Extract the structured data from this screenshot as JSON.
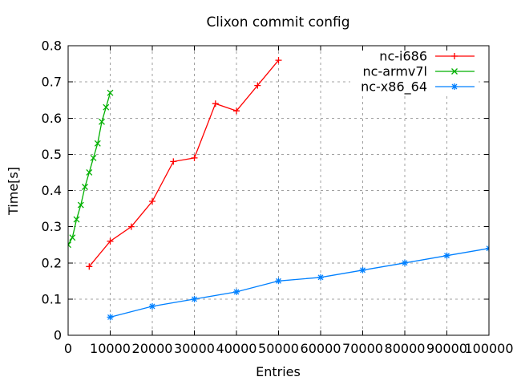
{
  "chart_data": {
    "type": "line",
    "title": "Clixon commit config",
    "xlabel": "Entries",
    "ylabel": "Time[s]",
    "xlim": [
      0,
      100000
    ],
    "ylim": [
      0,
      0.8
    ],
    "xticks": [
      0,
      10000,
      20000,
      30000,
      40000,
      50000,
      60000,
      70000,
      80000,
      90000,
      100000
    ],
    "yticks": [
      0,
      0.1,
      0.2,
      0.3,
      0.4,
      0.5,
      0.6,
      0.7,
      0.8
    ],
    "grid": true,
    "legend_position": "top-right-inside",
    "colors": {
      "background": "#ffffff",
      "grid": "#a0a0a0",
      "axis": "#000000",
      "text": "#000000"
    },
    "series": [
      {
        "name": "nc-i686",
        "color": "#ff0000",
        "marker": "plus",
        "x": [
          5000,
          10000,
          15000,
          20000,
          25000,
          30000,
          35000,
          40000,
          45000,
          50000
        ],
        "y": [
          0.19,
          0.26,
          0.3,
          0.37,
          0.48,
          0.49,
          0.64,
          0.62,
          0.69,
          0.76
        ]
      },
      {
        "name": "nc-armv7l",
        "color": "#00b000",
        "marker": "cross",
        "x": [
          0,
          1000,
          2000,
          3000,
          4000,
          5000,
          6000,
          7000,
          8000,
          9000,
          10000
        ],
        "y": [
          0.25,
          0.27,
          0.32,
          0.36,
          0.41,
          0.45,
          0.49,
          0.53,
          0.59,
          0.63,
          0.67
        ]
      },
      {
        "name": "nc-x86_64",
        "color": "#0080ff",
        "marker": "asterisk",
        "x": [
          10000,
          20000,
          30000,
          40000,
          50000,
          60000,
          70000,
          80000,
          90000,
          100000
        ],
        "y": [
          0.05,
          0.08,
          0.1,
          0.12,
          0.15,
          0.16,
          0.18,
          0.2,
          0.22,
          0.24
        ]
      }
    ]
  }
}
